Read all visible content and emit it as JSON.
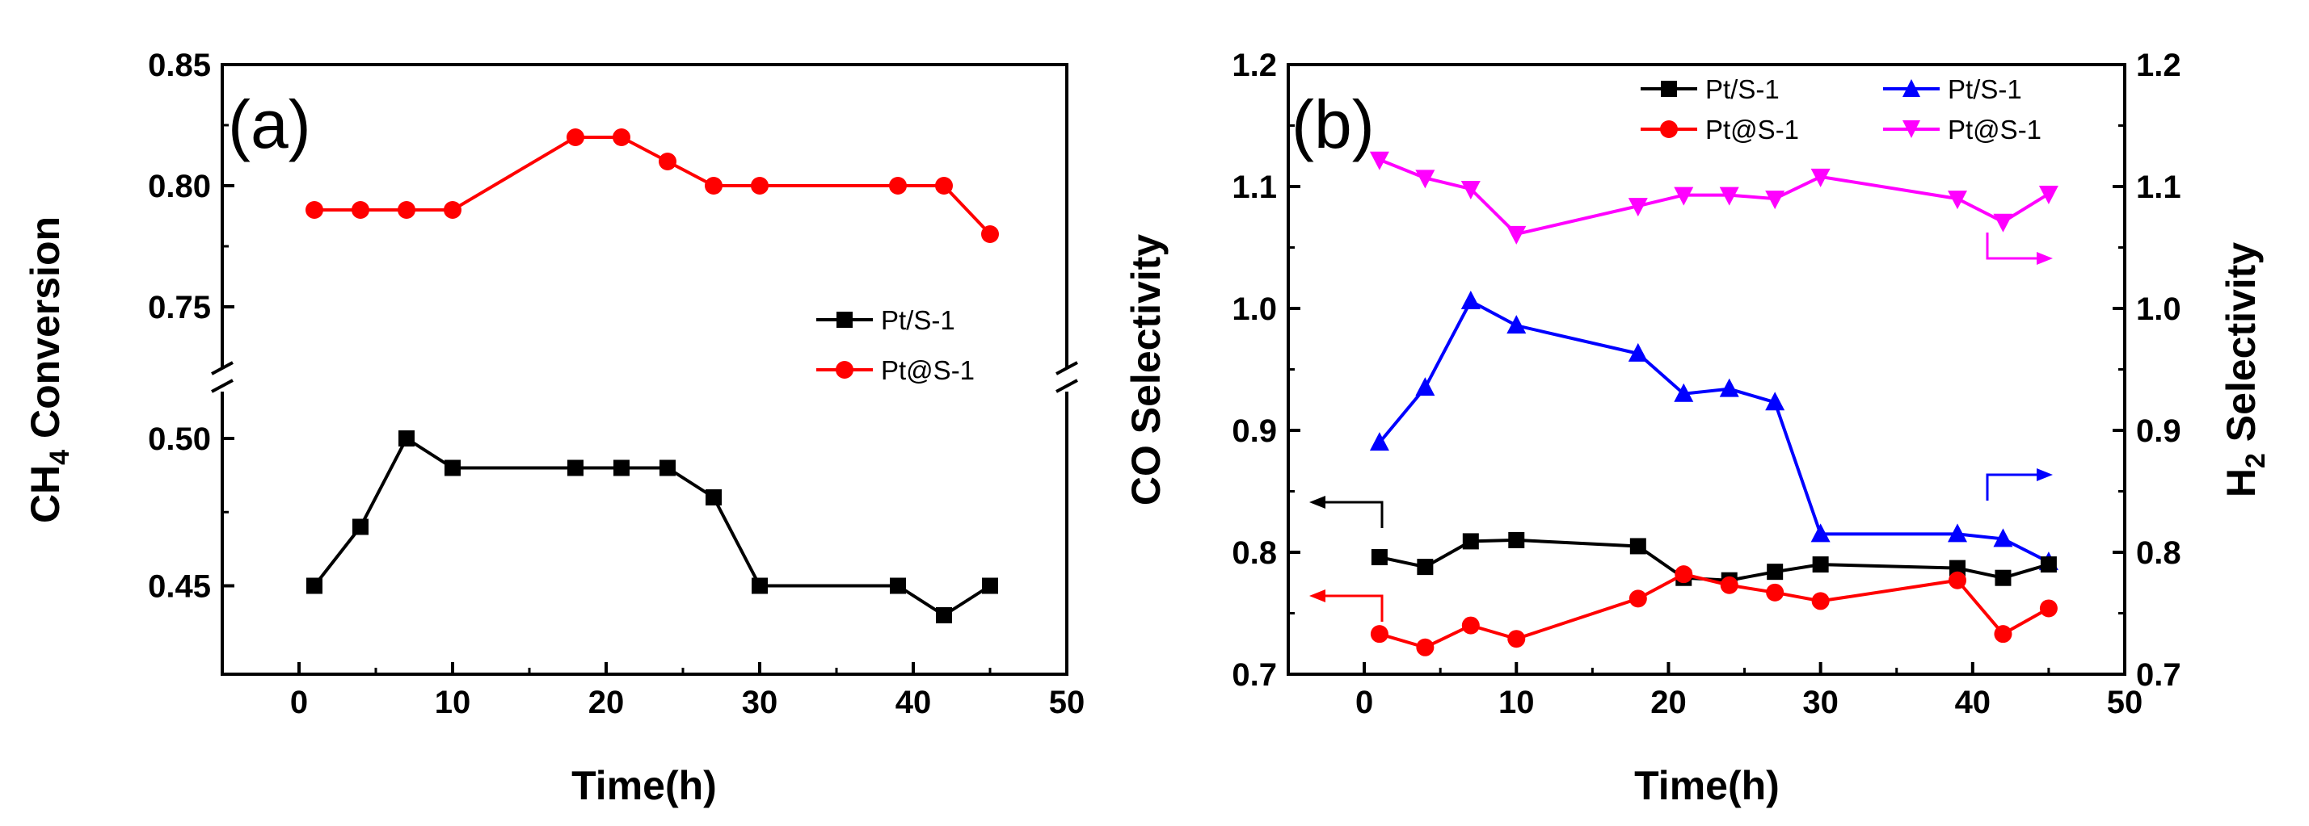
{
  "chart_data": [
    {
      "type": "line",
      "panel_label": "(a)",
      "xlabel": "Time(h)",
      "ylabel_main": "CH",
      "ylabel_sub": "4",
      "ylabel_rest": " Conversion",
      "xlim": [
        -5,
        50
      ],
      "xticks": [
        "0",
        "10",
        "20",
        "30",
        "40",
        "50"
      ],
      "y_break": true,
      "ylim_upper": [
        0.72,
        0.85
      ],
      "ylim_lower": [
        0.42,
        0.52
      ],
      "yticks_upper": [
        "0.75",
        "0.80",
        "0.85"
      ],
      "yticks_lower": [
        "0.45",
        "0.50"
      ],
      "legend_position": "right",
      "series": [
        {
          "name": "Pt/S-1",
          "color": "#000000",
          "marker": "square",
          "x": [
            1,
            4,
            7,
            10,
            18,
            21,
            24,
            27,
            30,
            39,
            42,
            45
          ],
          "y": [
            0.45,
            0.47,
            0.5,
            0.49,
            0.49,
            0.49,
            0.49,
            0.48,
            0.45,
            0.45,
            0.44,
            0.45
          ]
        },
        {
          "name": "Pt@S-1",
          "color": "#ff0000",
          "marker": "circle",
          "x": [
            1,
            4,
            7,
            10,
            18,
            21,
            24,
            27,
            30,
            39,
            42,
            45
          ],
          "y": [
            0.79,
            0.79,
            0.79,
            0.79,
            0.82,
            0.82,
            0.81,
            0.8,
            0.8,
            0.8,
            0.8,
            0.78
          ]
        }
      ]
    },
    {
      "type": "line",
      "panel_label": "(b)",
      "xlabel": "Time(h)",
      "ylabel_left": "CO Selectivity",
      "ylabel_right_main": "H",
      "ylabel_right_sub": "2",
      "ylabel_right_rest": " Selectivity",
      "xlim": [
        -5,
        50
      ],
      "xticks": [
        "0",
        "10",
        "20",
        "30",
        "40",
        "50"
      ],
      "ylim": [
        0.7,
        1.2
      ],
      "yticks": [
        "0.7",
        "0.8",
        "0.9",
        "1.0",
        "1.1",
        "1.2"
      ],
      "legend_position": "top-right",
      "series": [
        {
          "name": "Pt/S-1",
          "axis": "left",
          "color": "#000000",
          "marker": "square",
          "x": [
            1,
            4,
            7,
            10,
            18,
            21,
            24,
            27,
            30,
            39,
            42,
            45
          ],
          "y": [
            0.796,
            0.788,
            0.809,
            0.81,
            0.805,
            0.779,
            0.777,
            0.784,
            0.79,
            0.787,
            0.779,
            0.79
          ]
        },
        {
          "name": "Pt@S-1",
          "axis": "left",
          "color": "#ff0000",
          "marker": "circle",
          "x": [
            1,
            4,
            7,
            10,
            18,
            21,
            24,
            27,
            30,
            39,
            42,
            45
          ],
          "y": [
            0.733,
            0.722,
            0.74,
            0.729,
            0.762,
            0.782,
            0.773,
            0.767,
            0.76,
            0.777,
            0.733,
            0.754
          ]
        },
        {
          "name": "Pt/S-1",
          "axis": "right",
          "color": "#0000ff",
          "marker": "triangle-up",
          "x": [
            1,
            4,
            7,
            10,
            18,
            21,
            24,
            27,
            30,
            39,
            42,
            45
          ],
          "y": [
            0.89,
            0.935,
            1.006,
            0.986,
            0.963,
            0.93,
            0.934,
            0.923,
            0.815,
            0.815,
            0.811,
            0.792
          ]
        },
        {
          "name": "Pt@S-1",
          "axis": "right",
          "color": "#ff00ff",
          "marker": "triangle-down",
          "x": [
            1,
            4,
            7,
            10,
            18,
            21,
            24,
            27,
            30,
            39,
            42,
            45
          ],
          "y": [
            1.122,
            1.107,
            1.098,
            1.061,
            1.084,
            1.093,
            1.093,
            1.09,
            1.108,
            1.09,
            1.071,
            1.094
          ]
        }
      ]
    }
  ]
}
